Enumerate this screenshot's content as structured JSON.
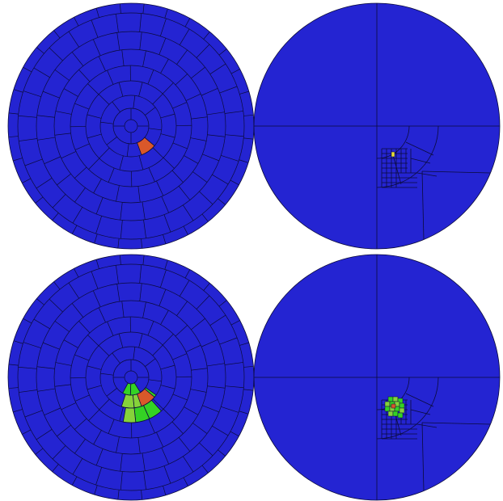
{
  "colors": {
    "background": "#ffffff",
    "fill": "#2424d2",
    "mesh_line": "#0b0b3a",
    "active_cell": "#d9582a",
    "neighbor_cell_bright": "#34d224",
    "neighbor_cell_light": "#86d23a",
    "highlight_cell": "#e8e03a"
  },
  "panels": [
    {
      "id": "top-left",
      "mesh": "uniform-polar",
      "state": "single-cell"
    },
    {
      "id": "top-right",
      "mesh": "adaptive-quadtree",
      "state": "single-cell"
    },
    {
      "id": "bottom-left",
      "mesh": "uniform-polar",
      "state": "cell-with-neighbors"
    },
    {
      "id": "bottom-right",
      "mesh": "adaptive-quadtree",
      "state": "cell-with-neighbors"
    }
  ]
}
